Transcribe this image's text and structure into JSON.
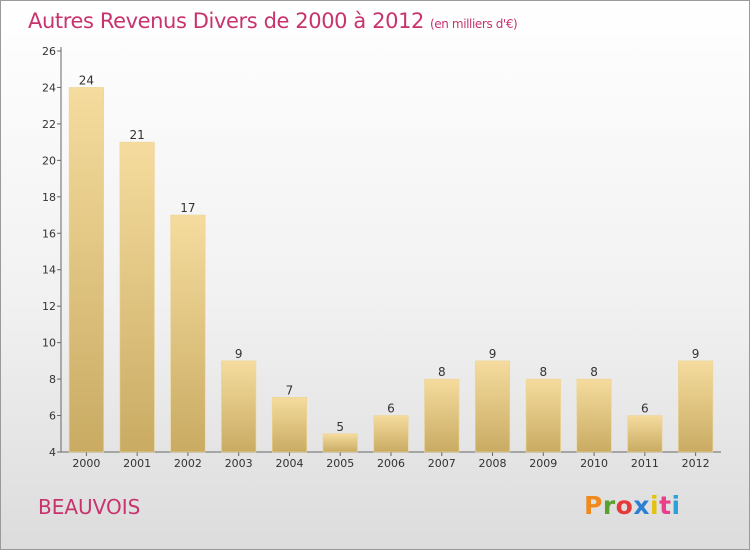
{
  "header": {
    "title": "Autres Revenus Divers de 2000 à 2012",
    "unit": "(en milliers d'€)"
  },
  "footer": {
    "commune": "BEAUVOIS",
    "logo_letters": [
      "P",
      "r",
      "o",
      "x",
      "i",
      "t",
      "i"
    ],
    "logo_colors": [
      "#f08a1c",
      "#5aa02c",
      "#e53a3a",
      "#2f7fd0",
      "#e6c10b",
      "#e83f8a",
      "#2ea0d9"
    ]
  },
  "chart_data": {
    "type": "bar",
    "title": "Autres Revenus Divers de 2000 à 2012",
    "categories": [
      "2000",
      "2001",
      "2002",
      "2003",
      "2004",
      "2005",
      "2006",
      "2007",
      "2008",
      "2009",
      "2010",
      "2011",
      "2012"
    ],
    "values": [
      24,
      21,
      17,
      9,
      7,
      5,
      6,
      8,
      9,
      8,
      8,
      6,
      9
    ],
    "ylim": [
      4,
      26
    ],
    "yticks": [
      4,
      6,
      8,
      10,
      12,
      14,
      16,
      18,
      20,
      22,
      24,
      26
    ],
    "grid": false,
    "bar_color_light": "#f5dc9e",
    "bar_color_dark": "#c9ab63"
  }
}
